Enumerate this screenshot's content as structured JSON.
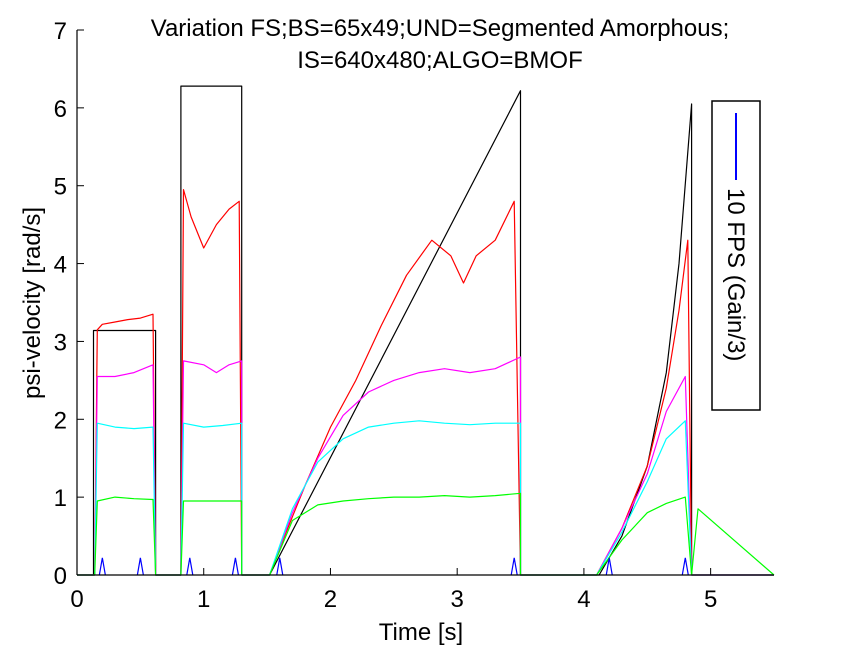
{
  "chart_data": {
    "type": "line",
    "title": "Variation FS;BS=65x49;UND=Segmented Amorphous;",
    "subtitle": "IS=640x480;ALGO=BMOF",
    "xlabel": "Time [s]",
    "ylabel": "psi-velocity [rad/s]",
    "xlim": [
      0,
      5.5
    ],
    "ylim": [
      0,
      7
    ],
    "x_ticks": [
      0,
      1,
      2,
      3,
      4,
      5
    ],
    "y_ticks": [
      0,
      1,
      2,
      3,
      4,
      5,
      6,
      7
    ],
    "grid": false,
    "legend": {
      "position": "right",
      "entries": [
        "10 FPS (Gain/3)"
      ]
    },
    "series": [
      {
        "name": "",
        "color": "#000000",
        "x": [
          0,
          0.13,
          0.13,
          0.62,
          0.62,
          0.82,
          0.82,
          1.3,
          1.3,
          1.52,
          3.5,
          3.5,
          4.12,
          4.3,
          4.5,
          4.65,
          4.75,
          4.85,
          4.85,
          5.5
        ],
        "y": [
          0,
          0,
          3.14,
          3.14,
          0,
          0,
          6.28,
          6.28,
          0,
          0,
          6.22,
          0,
          0,
          0.5,
          1.4,
          2.6,
          4.0,
          6.05,
          0,
          0
        ]
      },
      {
        "name": "",
        "color": "#ff0000",
        "x": [
          0,
          0.14,
          0.16,
          0.2,
          0.3,
          0.4,
          0.5,
          0.6,
          0.62,
          0.82,
          0.84,
          0.9,
          1.0,
          1.1,
          1.2,
          1.28,
          1.3,
          1.52,
          1.6,
          1.8,
          2.0,
          2.2,
          2.4,
          2.6,
          2.8,
          2.95,
          3.05,
          3.15,
          3.3,
          3.45,
          3.5,
          4.1,
          4.3,
          4.5,
          4.65,
          4.75,
          4.82,
          4.85,
          5.5
        ],
        "y": [
          0,
          0,
          3.15,
          3.22,
          3.25,
          3.28,
          3.3,
          3.35,
          0,
          0,
          4.95,
          4.6,
          4.2,
          4.5,
          4.7,
          4.8,
          0,
          0,
          0.35,
          1.15,
          1.9,
          2.5,
          3.2,
          3.85,
          4.3,
          4.1,
          3.75,
          4.1,
          4.3,
          4.8,
          0,
          0,
          0.6,
          1.4,
          2.4,
          3.4,
          4.3,
          0,
          0
        ]
      },
      {
        "name": "",
        "color": "#ff00ff",
        "x": [
          0,
          0.14,
          0.16,
          0.3,
          0.45,
          0.6,
          0.62,
          0.82,
          0.84,
          1.0,
          1.1,
          1.2,
          1.3,
          1.3,
          1.52,
          1.7,
          1.9,
          2.1,
          2.3,
          2.5,
          2.7,
          2.9,
          3.1,
          3.3,
          3.5,
          3.5,
          4.1,
          4.3,
          4.5,
          4.65,
          4.8,
          4.85,
          5.5
        ],
        "y": [
          0,
          0,
          2.55,
          2.55,
          2.6,
          2.7,
          0,
          0,
          2.75,
          2.7,
          2.6,
          2.7,
          2.75,
          0,
          0,
          0.8,
          1.5,
          2.05,
          2.35,
          2.5,
          2.6,
          2.65,
          2.6,
          2.65,
          2.8,
          0,
          0,
          0.6,
          1.3,
          2.1,
          2.55,
          0,
          0
        ]
      },
      {
        "name": "",
        "color": "#00ffff",
        "x": [
          0,
          0.14,
          0.16,
          0.3,
          0.45,
          0.6,
          0.62,
          0.82,
          0.84,
          1.0,
          1.15,
          1.3,
          1.3,
          1.52,
          1.7,
          1.9,
          2.1,
          2.3,
          2.5,
          2.7,
          2.9,
          3.1,
          3.3,
          3.5,
          3.5,
          4.1,
          4.3,
          4.5,
          4.65,
          4.8,
          4.85,
          5.5
        ],
        "y": [
          0,
          0,
          1.95,
          1.9,
          1.88,
          1.9,
          0,
          0,
          1.95,
          1.9,
          1.92,
          1.95,
          0,
          0,
          0.85,
          1.45,
          1.75,
          1.9,
          1.95,
          1.98,
          1.95,
          1.93,
          1.95,
          1.95,
          0,
          0,
          0.55,
          1.2,
          1.75,
          1.98,
          0,
          0
        ]
      },
      {
        "name": "",
        "color": "#00ff00",
        "x": [
          0,
          0.14,
          0.16,
          0.3,
          0.45,
          0.6,
          0.62,
          0.82,
          0.84,
          1.0,
          1.15,
          1.3,
          1.3,
          1.52,
          1.7,
          1.9,
          2.1,
          2.3,
          2.5,
          2.7,
          2.9,
          3.1,
          3.3,
          3.5,
          3.5,
          4.1,
          4.3,
          4.5,
          4.65,
          4.8,
          4.85,
          4.9,
          5.5
        ],
        "y": [
          0,
          0,
          0.95,
          1.0,
          0.98,
          0.97,
          0,
          0,
          0.95,
          0.95,
          0.95,
          0.95,
          0,
          0,
          0.7,
          0.9,
          0.95,
          0.98,
          1.0,
          1.0,
          1.02,
          1.0,
          1.02,
          1.05,
          0,
          0,
          0.45,
          0.8,
          0.92,
          1.0,
          0,
          0.85,
          0
        ]
      },
      {
        "name": "10 FPS (Gain/3)",
        "color": "#0000ff",
        "x": [
          0.2,
          0.5,
          0.89,
          1.25,
          1.6,
          3.45,
          4.2,
          4.8
        ],
        "y": [
          0.22,
          0.22,
          0.22,
          0.22,
          0.22,
          0.22,
          0.22,
          0.22
        ]
      }
    ]
  }
}
